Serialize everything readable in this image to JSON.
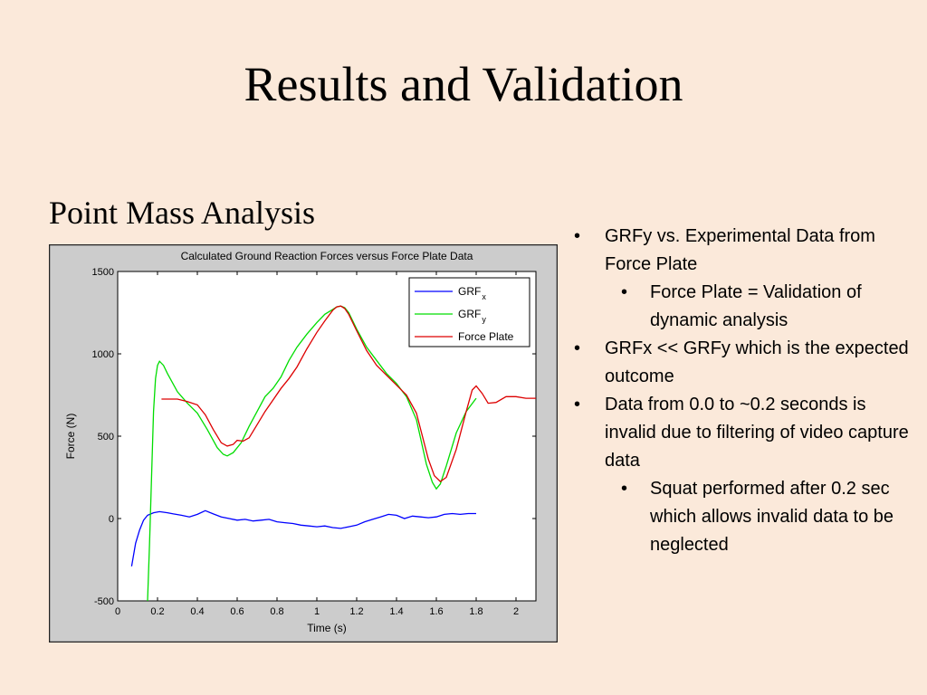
{
  "slide": {
    "title": "Results and Validation",
    "subtitle": "Point Mass Analysis"
  },
  "bullets": [
    {
      "level": 1,
      "text": "GRFy vs. Experimental Data from Force Plate"
    },
    {
      "level": 2,
      "text": "Force Plate = Validation of dynamic analysis"
    },
    {
      "level": 1,
      "text": "GRFx << GRFy which is the expected outcome"
    },
    {
      "level": 1,
      "text": "Data from 0.0 to ~0.2 seconds is invalid due to filtering of video capture data"
    },
    {
      "level": 2,
      "text": "Squat performed after 0.2 sec which allows invalid data to be neglected"
    }
  ],
  "chart_data": {
    "type": "line",
    "title": "Calculated Ground Reaction Forces versus Force Plate Data",
    "xlabel": "Time (s)",
    "ylabel": "Force (N)",
    "xlim": [
      0,
      2.1
    ],
    "ylim": [
      -500,
      1500
    ],
    "xticks": [
      "0",
      "0.2",
      "0.4",
      "0.6",
      "0.8",
      "1",
      "1.2",
      "1.4",
      "1.6",
      "1.8",
      "2"
    ],
    "yticks": [
      "-500",
      "0",
      "500",
      "1000",
      "1500"
    ],
    "grid": false,
    "legend_position": "top-right",
    "series": [
      {
        "name": "GRFx",
        "label": "GRF",
        "subscript": "x",
        "color": "#0000ff",
        "x": [
          0.07,
          0.09,
          0.11,
          0.13,
          0.15,
          0.18,
          0.21,
          0.25,
          0.28,
          0.32,
          0.36,
          0.4,
          0.44,
          0.48,
          0.52,
          0.56,
          0.6,
          0.64,
          0.68,
          0.72,
          0.76,
          0.8,
          0.84,
          0.88,
          0.92,
          0.96,
          1.0,
          1.04,
          1.08,
          1.12,
          1.16,
          1.2,
          1.24,
          1.28,
          1.32,
          1.36,
          1.4,
          1.44,
          1.48,
          1.52,
          1.56,
          1.6,
          1.64,
          1.68,
          1.72,
          1.76,
          1.8
        ],
        "y": [
          -290,
          -150,
          -70,
          -10,
          20,
          35,
          42,
          35,
          28,
          20,
          10,
          25,
          48,
          28,
          10,
          0,
          -10,
          -5,
          -15,
          -10,
          -5,
          -20,
          -25,
          -30,
          -40,
          -45,
          -50,
          -45,
          -55,
          -60,
          -50,
          -40,
          -20,
          -5,
          10,
          25,
          20,
          0,
          15,
          10,
          5,
          10,
          25,
          30,
          25,
          30,
          30
        ]
      },
      {
        "name": "GRFy",
        "label": "GRF",
        "subscript": "y",
        "color": "#00dd00",
        "x": [
          0.15,
          0.16,
          0.17,
          0.18,
          0.19,
          0.2,
          0.21,
          0.23,
          0.25,
          0.3,
          0.35,
          0.4,
          0.45,
          0.5,
          0.53,
          0.55,
          0.58,
          0.62,
          0.66,
          0.7,
          0.74,
          0.78,
          0.82,
          0.86,
          0.9,
          0.95,
          1.0,
          1.04,
          1.08,
          1.1,
          1.12,
          1.14,
          1.16,
          1.2,
          1.25,
          1.3,
          1.35,
          1.4,
          1.45,
          1.5,
          1.55,
          1.58,
          1.6,
          1.62,
          1.65,
          1.7,
          1.75,
          1.8
        ],
        "y": [
          -500,
          -150,
          250,
          650,
          850,
          930,
          955,
          930,
          880,
          770,
          700,
          640,
          540,
          430,
          390,
          380,
          400,
          460,
          560,
          650,
          740,
          790,
          860,
          960,
          1040,
          1120,
          1190,
          1240,
          1270,
          1285,
          1290,
          1280,
          1250,
          1150,
          1040,
          960,
          880,
          820,
          740,
          600,
          330,
          220,
          180,
          210,
          320,
          520,
          650,
          730
        ]
      },
      {
        "name": "Force Plate",
        "label": "Force Plate",
        "subscript": "",
        "color": "#dd0000",
        "x": [
          0.22,
          0.25,
          0.3,
          0.35,
          0.4,
          0.44,
          0.48,
          0.52,
          0.55,
          0.58,
          0.6,
          0.63,
          0.66,
          0.7,
          0.74,
          0.78,
          0.82,
          0.86,
          0.9,
          0.95,
          1.0,
          1.04,
          1.08,
          1.1,
          1.12,
          1.14,
          1.16,
          1.2,
          1.25,
          1.3,
          1.35,
          1.4,
          1.45,
          1.5,
          1.53,
          1.56,
          1.59,
          1.62,
          1.65,
          1.7,
          1.75,
          1.78,
          1.8,
          1.83,
          1.86,
          1.9,
          1.95,
          2.0,
          2.05,
          2.1
        ],
        "y": [
          725,
          725,
          725,
          710,
          690,
          630,
          540,
          460,
          440,
          450,
          475,
          470,
          490,
          570,
          650,
          720,
          790,
          850,
          920,
          1030,
          1130,
          1200,
          1265,
          1285,
          1290,
          1275,
          1240,
          1140,
          1020,
          930,
          870,
          810,
          750,
          640,
          500,
          360,
          260,
          225,
          250,
          420,
          650,
          780,
          805,
          760,
          700,
          705,
          740,
          740,
          730,
          730
        ]
      }
    ]
  }
}
